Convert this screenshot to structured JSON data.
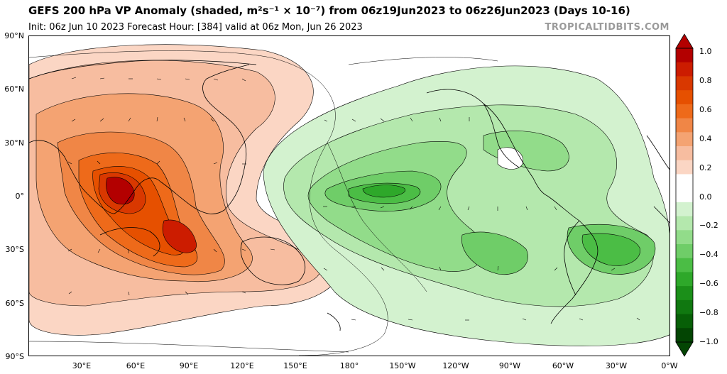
{
  "header": {
    "title": "GEFS 200 hPa VP Anomaly (shaded, m²s⁻¹ × 10⁻⁷) from 06z19Jun2023 to 06z26Jun2023 (Days 10-16)",
    "subtitle": "Init: 06z Jun 10 2023   Forecast Hour: [384]   valid at 06z Mon, Jun 26 2023",
    "watermark": "TROPICALTIDBITS.COM"
  },
  "map": {
    "lat_labels": [
      "90°N",
      "60°N",
      "30°N",
      "0°",
      "30°S",
      "60°S",
      "90°S"
    ],
    "lon_labels": [
      "30°E",
      "60°E",
      "90°E",
      "120°E",
      "150°E",
      "180°",
      "150°W",
      "120°W",
      "90°W",
      "60°W",
      "30°W",
      "0°W"
    ],
    "features": {
      "positive_anomaly_center": "Indian Ocean / Maritime Continent",
      "negative_anomaly_center": "Central-East Pacific and Americas"
    }
  },
  "colorbar": {
    "labels": [
      "1.0",
      "0.8",
      "0.6",
      "0.4",
      "0.2",
      "0.0",
      "−0.2",
      "−0.4",
      "−0.6",
      "−0.8",
      "−1.0"
    ],
    "colors": [
      "#b30000",
      "#cc1c00",
      "#d93800",
      "#e65000",
      "#ee6a1a",
      "#f08646",
      "#f4a372",
      "#f7bda0",
      "#fbd6c4",
      "#ffffff",
      "#ffffff",
      "#d3f2cf",
      "#b4e8ad",
      "#92dc8a",
      "#6fcd68",
      "#4bbd45",
      "#2ea82a",
      "#1b8f19",
      "#107810",
      "#075f07",
      "#034503"
    ]
  }
}
